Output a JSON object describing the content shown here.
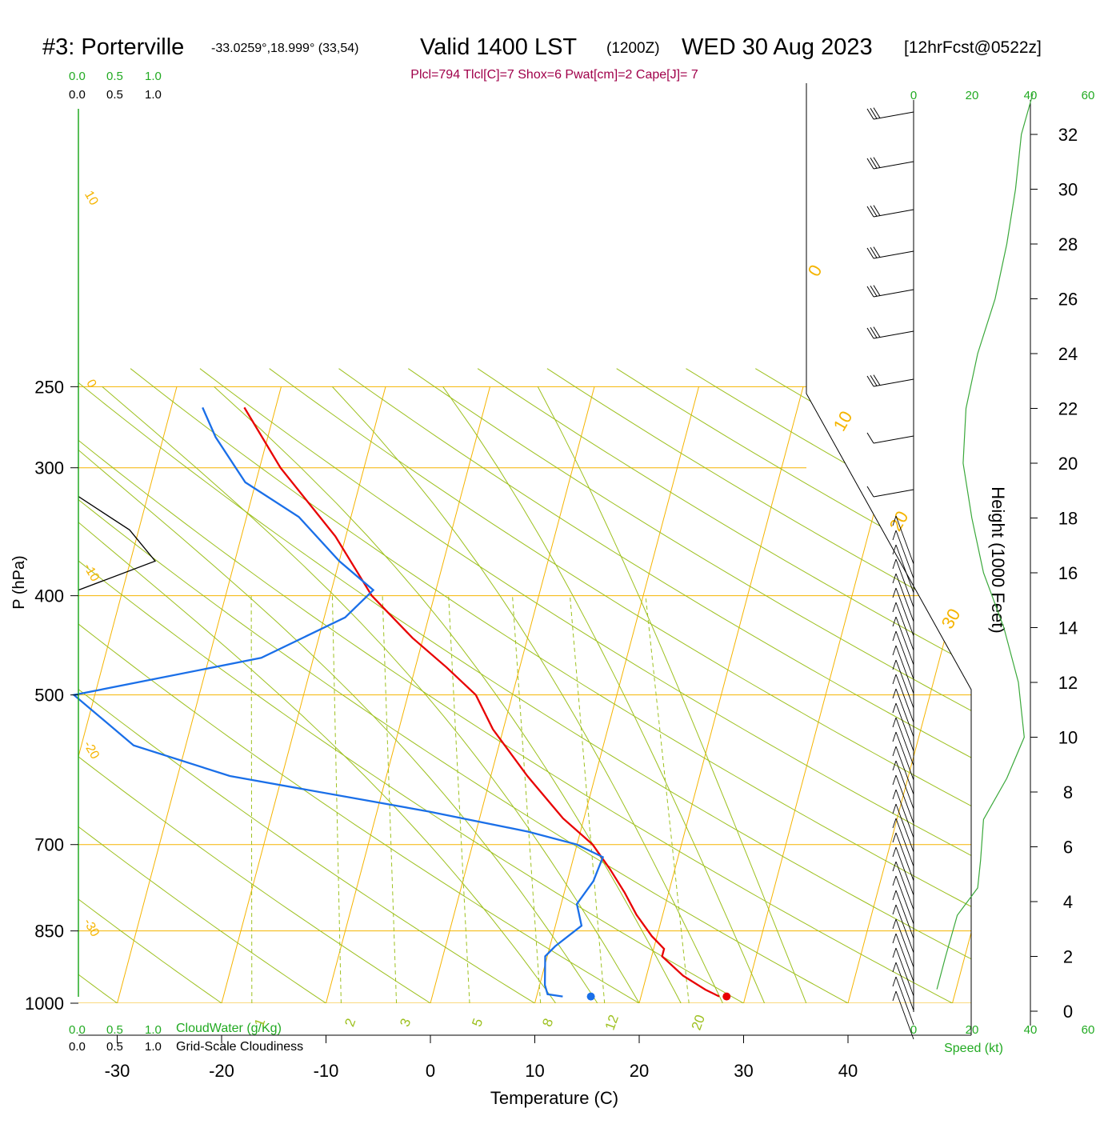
{
  "header": {
    "station": "#3: Porterville",
    "coords": "-33.0259°,18.999° (33,54)",
    "valid": "Valid 1400 LST",
    "zulu": "(1200Z)",
    "date": "WED 30 Aug 2023",
    "fcst": "[12hrFcst@0522z]"
  },
  "indices": "Plcl=794 Tlcl[C]=7 Shox=6 Pwat[cm]=2 Cape[J]= 7",
  "scale_labels": {
    "top_green": [
      "0.0",
      "0.5",
      "1.0"
    ],
    "top_black": [
      "0.0",
      "0.5",
      "1.0"
    ],
    "bottom_green": [
      "0.0",
      "0.5",
      "1.0"
    ],
    "bottom_black": [
      "0.0",
      "0.5",
      "1.0"
    ],
    "cloudwater": "CloudWater (g/Kg)",
    "cloudiness": "Grid-Scale Cloudiness",
    "speed_title": "Speed (kt)",
    "speed_ticks": [
      "0",
      "20",
      "40",
      "60"
    ]
  },
  "colors": {
    "isotherm": "#f5b400",
    "dry_adiabat": "#9dc01e",
    "mixing_ratio": "#9dc01e",
    "temperature": "#e80000",
    "dewpoint": "#1a6fe8",
    "speed": "#3aa83a",
    "indices": "#a0004a",
    "green_text": "#22aa22"
  },
  "chart_data": {
    "type": "line",
    "xlabel": "Temperature (C)",
    "ylabel": "P (hPa)",
    "y2label": "Height (1000 Feet)",
    "x_ticks": [
      -30,
      -20,
      -10,
      0,
      10,
      20,
      30,
      40
    ],
    "p_ticks": [
      250,
      300,
      400,
      500,
      700,
      850,
      1000
    ],
    "height_ticks": [
      0,
      2,
      4,
      6,
      8,
      10,
      12,
      14,
      16,
      18,
      20,
      22,
      24,
      26,
      28,
      30,
      32
    ],
    "isotherm_labels": [
      "10",
      "0",
      "-10",
      "-20",
      "-30",
      "0",
      "10",
      "20",
      "30"
    ],
    "mixing_ratio_labels": [
      "1",
      "2",
      "3",
      "5",
      "8",
      "12",
      "20"
    ],
    "temperature": {
      "p": [
        985,
        970,
        940,
        900,
        885,
        860,
        820,
        780,
        740,
        700,
        660,
        600,
        540,
        500,
        470,
        440,
        400,
        350,
        300,
        262
      ],
      "t": [
        27.5,
        26,
        23.5,
        21,
        21,
        19.5,
        17.5,
        15.8,
        13.8,
        11.5,
        8,
        3.5,
        -1,
        -3.5,
        -7,
        -11,
        -16,
        -21,
        -28,
        -33
      ]
    },
    "dewpoint": {
      "p": [
        985,
        980,
        960,
        900,
        880,
        840,
        800,
        760,
        720,
        700,
        680,
        650,
        600,
        560,
        500,
        460,
        420,
        395,
        370,
        335,
        310,
        280,
        262
      ],
      "td": [
        12.5,
        11,
        10.5,
        9.8,
        10.5,
        12.5,
        11.5,
        12.5,
        12.8,
        10,
        5,
        -5,
        -25,
        -35,
        -42,
        -25,
        -18,
        -16,
        -20,
        -25,
        -31,
        -35,
        -37
      ]
    },
    "parcel_markers": {
      "temperature_c": 28.2,
      "dewpoint_c": 15.2,
      "p": 985
    },
    "wind_speed_kt": {
      "height_kft": [
        0.8,
        2,
        3.5,
        4.5,
        5.5,
        7,
        8.5,
        10,
        12,
        14,
        16,
        18,
        20,
        22,
        24,
        26,
        28,
        30,
        32,
        33.5
      ],
      "speed": [
        8,
        11,
        15,
        22,
        23,
        24,
        32,
        38,
        36,
        31,
        24,
        20,
        17,
        18,
        22,
        28,
        32,
        35,
        37,
        41
      ]
    },
    "cloudiness_profile": {
      "p": [
        320,
        345,
        370,
        395
      ],
      "value": [
        0,
        0.5,
        0.75,
        0
      ]
    }
  }
}
